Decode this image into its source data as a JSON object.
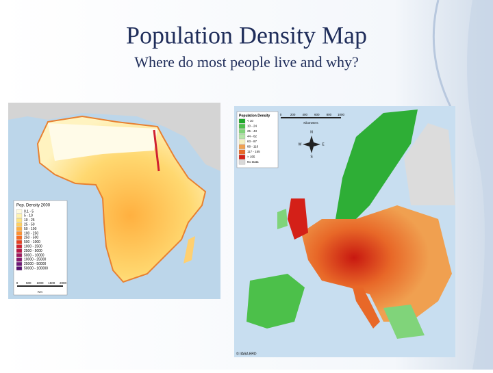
{
  "header": {
    "title": "Population Density Map",
    "subtitle": "Where do most people live and why?"
  },
  "africa_map": {
    "legend": {
      "title": "Pop. Density 2000",
      "items": [
        {
          "label": "0.1 - 5",
          "color": "#fffbe0"
        },
        {
          "label": "5 - 10",
          "color": "#fff3b0"
        },
        {
          "label": "10 - 25",
          "color": "#ffe680"
        },
        {
          "label": "25 - 50",
          "color": "#ffd060"
        },
        {
          "label": "50 - 100",
          "color": "#ffb040"
        },
        {
          "label": "100 - 250",
          "color": "#ff9030"
        },
        {
          "label": "250 - 500",
          "color": "#f86a20"
        },
        {
          "label": "500 - 1000",
          "color": "#e84020"
        },
        {
          "label": "1000 - 2500",
          "color": "#d02030"
        },
        {
          "label": "2500 - 5000",
          "color": "#b81848"
        },
        {
          "label": "5000 - 10000",
          "color": "#a01860"
        },
        {
          "label": "10000 - 25000",
          "color": "#881870"
        },
        {
          "label": "25000 - 50000",
          "color": "#701878"
        },
        {
          "label": "50000 - 100000",
          "color": "#581070"
        }
      ]
    },
    "scale": {
      "ticks": [
        "0",
        "500",
        "1000",
        "1500",
        "2000"
      ],
      "unit": "Km"
    }
  },
  "europe_map": {
    "legend": {
      "title": "Population Density",
      "items": [
        {
          "label": "< 10",
          "color": "#1ea82a"
        },
        {
          "label": "10 - 24",
          "color": "#4cc04a"
        },
        {
          "label": "25 - 43",
          "color": "#80d47a"
        },
        {
          "label": "44 - 62",
          "color": "#b4e6a8"
        },
        {
          "label": "63 - 87",
          "color": "#f4f0c0"
        },
        {
          "label": "88 - 116",
          "color": "#f0a050"
        },
        {
          "label": "117 - 155",
          "color": "#e86828"
        },
        {
          "label": "> 155",
          "color": "#d42018"
        },
        {
          "label": "No Data",
          "color": "#d8d8d8"
        }
      ]
    },
    "scale": {
      "ticks": [
        "0",
        "200",
        "400",
        "600",
        "800",
        "1000"
      ],
      "unit": "Kilometers"
    },
    "compass": {
      "n": "N",
      "e": "E",
      "s": "S",
      "w": "W"
    },
    "credit": "© IIASA ERD"
  }
}
